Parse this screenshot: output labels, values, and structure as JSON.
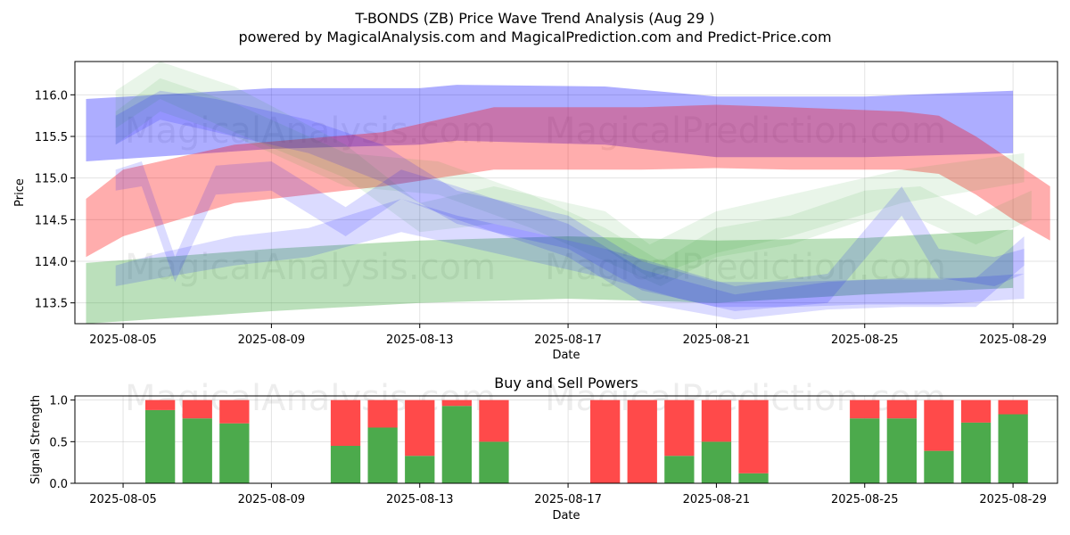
{
  "title_line1": "T-BONDS (ZB) Price Wave Trend Analysis (Aug 29 )",
  "title_line2": "powered by MagicalAnalysis.com and MagicalPrediction.com and Predict-Price.com",
  "watermarks": [
    "MagicalAnalysis.com",
    "MagicalPrediction.com"
  ],
  "colors": {
    "green": "#2ca02c",
    "red": "#ff0000",
    "blue": "#0000ff",
    "purple": "#9b3fa0",
    "buy": "#4caa4c",
    "sell": "#ff4a4a"
  },
  "chart_data": [
    {
      "type": "area",
      "title": "",
      "xlabel": "Date",
      "ylabel": "Price",
      "xlim": [
        "2025-08-03.7",
        "2025-08-30.2"
      ],
      "ylim": [
        113.25,
        116.4
      ],
      "x_ticks": [
        "2025-08-05",
        "2025-08-09",
        "2025-08-13",
        "2025-08-17",
        "2025-08-21",
        "2025-08-25",
        "2025-08-29"
      ],
      "y_ticks": [
        113.5,
        114.0,
        114.5,
        115.0,
        115.5,
        116.0
      ],
      "grid": true,
      "bands": [
        {
          "color": "blue",
          "opacity": 0.32,
          "dates": [
            "2025-08-04",
            "2025-08-09",
            "2025-08-13",
            "2025-08-14",
            "2025-08-18",
            "2025-08-21",
            "2025-08-25",
            "2025-08-29"
          ],
          "upper": [
            115.95,
            116.08,
            116.08,
            116.12,
            116.1,
            115.98,
            115.98,
            116.05
          ],
          "lower": [
            115.2,
            115.35,
            115.4,
            115.45,
            115.4,
            115.25,
            115.25,
            115.3
          ]
        },
        {
          "color": "red",
          "opacity": 0.32,
          "dates": [
            "2025-08-04",
            "2025-08-05",
            "2025-08-08",
            "2025-08-12",
            "2025-08-15",
            "2025-08-19",
            "2025-08-21",
            "2025-08-23",
            "2025-08-26",
            "2025-08-27",
            "2025-08-28",
            "2025-08-29",
            "2025-08-30"
          ],
          "upper": [
            114.75,
            115.1,
            115.4,
            115.55,
            115.85,
            115.85,
            115.88,
            115.85,
            115.8,
            115.75,
            115.5,
            115.2,
            114.9
          ],
          "lower": [
            114.05,
            114.3,
            114.7,
            114.9,
            115.1,
            115.1,
            115.12,
            115.1,
            115.1,
            115.05,
            114.8,
            114.5,
            114.25
          ]
        },
        {
          "color": "green",
          "opacity": 0.32,
          "dates": [
            "2025-08-04",
            "2025-08-09",
            "2025-08-13",
            "2025-08-17",
            "2025-08-21",
            "2025-08-25",
            "2025-08-29"
          ],
          "upper": [
            113.98,
            114.15,
            114.25,
            114.3,
            114.25,
            114.28,
            114.38
          ],
          "lower": [
            113.25,
            113.4,
            113.5,
            113.55,
            113.5,
            113.6,
            113.68
          ]
        },
        {
          "color": "green",
          "opacity": 0.1,
          "dates": [
            "2025-08-04.8",
            "2025-08-06",
            "2025-08-08",
            "2025-08-11",
            "2025-08-13",
            "2025-08-15",
            "2025-08-18",
            "2025-08-19.2",
            "2025-08-21",
            "2025-08-23",
            "2025-08-26",
            "2025-08-29.3"
          ],
          "upper": [
            116.05,
            116.4,
            116.1,
            115.4,
            114.7,
            114.9,
            114.6,
            114.2,
            114.6,
            114.8,
            115.1,
            115.3
          ],
          "lower": [
            115.6,
            115.95,
            115.55,
            115.0,
            114.35,
            114.45,
            114.15,
            113.8,
            114.1,
            114.3,
            114.7,
            114.95
          ]
        },
        {
          "color": "green",
          "opacity": 0.1,
          "dates": [
            "2025-08-04.8",
            "2025-08-06",
            "2025-08-08",
            "2025-08-11",
            "2025-08-13.5",
            "2025-08-16",
            "2025-08-18",
            "2025-08-19.5",
            "2025-08-21",
            "2025-08-23",
            "2025-08-25",
            "2025-08-26.5",
            "2025-08-28",
            "2025-08-29.5"
          ],
          "upper": [
            115.8,
            116.2,
            115.9,
            115.3,
            115.2,
            114.8,
            114.4,
            114.0,
            114.4,
            114.55,
            114.85,
            114.9,
            114.55,
            114.85
          ],
          "lower": [
            115.4,
            115.8,
            115.5,
            114.9,
            114.8,
            114.4,
            114.0,
            113.7,
            114.05,
            114.2,
            114.5,
            114.5,
            114.2,
            114.5
          ]
        },
        {
          "color": "blue",
          "opacity": 0.14,
          "dates": [
            "2025-08-04.8",
            "2025-08-06",
            "2025-08-07.5",
            "2025-08-10",
            "2025-08-12",
            "2025-08-14",
            "2025-08-17",
            "2025-08-19",
            "2025-08-21",
            "2025-08-23",
            "2025-08-25",
            "2025-08-27",
            "2025-08-29.3"
          ],
          "upper": [
            115.75,
            116.05,
            115.95,
            115.7,
            115.4,
            114.85,
            114.55,
            114.0,
            113.75,
            113.75,
            113.78,
            113.78,
            113.85
          ],
          "lower": [
            115.4,
            115.7,
            115.55,
            115.3,
            114.95,
            114.45,
            114.15,
            113.65,
            113.45,
            113.45,
            113.48,
            113.48,
            113.55
          ]
        },
        {
          "color": "blue",
          "opacity": 0.14,
          "dates": [
            "2025-08-04.8",
            "2025-08-05.5",
            "2025-08-06.4",
            "2025-08-07.5",
            "2025-08-09",
            "2025-08-11",
            "2025-08-12.5",
            "2025-08-14",
            "2025-08-17",
            "2025-08-19",
            "2025-08-21.5",
            "2025-08-24",
            "2025-08-26",
            "2025-08-28",
            "2025-08-29.3"
          ],
          "upper": [
            115.1,
            115.2,
            114.05,
            115.15,
            115.2,
            114.65,
            115.1,
            114.9,
            114.45,
            113.9,
            113.6,
            113.75,
            113.8,
            113.8,
            114.3
          ],
          "lower": [
            114.85,
            114.9,
            113.75,
            114.8,
            114.85,
            114.3,
            114.75,
            114.5,
            114.05,
            113.5,
            113.3,
            113.42,
            113.45,
            113.45,
            113.95
          ]
        },
        {
          "color": "blue",
          "opacity": 0.14,
          "dates": [
            "2025-08-04.8",
            "2025-08-06",
            "2025-08-08",
            "2025-08-10",
            "2025-08-12.5",
            "2025-08-14",
            "2025-08-16",
            "2025-08-18",
            "2025-08-20",
            "2025-08-21.5",
            "2025-08-24",
            "2025-08-26",
            "2025-08-27",
            "2025-08-28.5",
            "2025-08-29.3"
          ],
          "upper": [
            113.95,
            114.1,
            114.3,
            114.4,
            114.75,
            114.55,
            114.35,
            114.15,
            113.9,
            113.7,
            113.85,
            114.9,
            114.15,
            114.05,
            114.15
          ],
          "lower": [
            113.7,
            113.8,
            113.95,
            114.05,
            114.35,
            114.2,
            114.0,
            113.8,
            113.55,
            113.4,
            113.5,
            114.55,
            113.8,
            113.7,
            113.85
          ]
        }
      ]
    },
    {
      "type": "bar",
      "title": "Buy and Sell Powers",
      "xlabel": "Date",
      "ylabel": "Signal Strength",
      "ylim": [
        0,
        1.05
      ],
      "y_ticks": [
        0.0,
        0.5,
        1.0
      ],
      "x_ticks": [
        "2025-08-05",
        "2025-08-09",
        "2025-08-13",
        "2025-08-17",
        "2025-08-21",
        "2025-08-25",
        "2025-08-29"
      ],
      "grid": true,
      "series": [
        {
          "name": "Buy",
          "color": "buy"
        },
        {
          "name": "Sell",
          "color": "sell"
        }
      ],
      "dates": [
        "2025-08-06",
        "2025-08-07",
        "2025-08-08",
        "2025-08-11",
        "2025-08-12",
        "2025-08-13",
        "2025-08-14",
        "2025-08-15",
        "2025-08-18",
        "2025-08-19",
        "2025-08-20",
        "2025-08-21",
        "2025-08-22",
        "2025-08-25",
        "2025-08-26",
        "2025-08-27",
        "2025-08-28",
        "2025-08-29"
      ],
      "buy": [
        0.88,
        0.78,
        0.72,
        0.45,
        0.67,
        0.33,
        0.93,
        0.5,
        0.0,
        0.0,
        0.33,
        0.5,
        0.12,
        0.78,
        0.78,
        0.39,
        0.73,
        0.83
      ]
    }
  ]
}
